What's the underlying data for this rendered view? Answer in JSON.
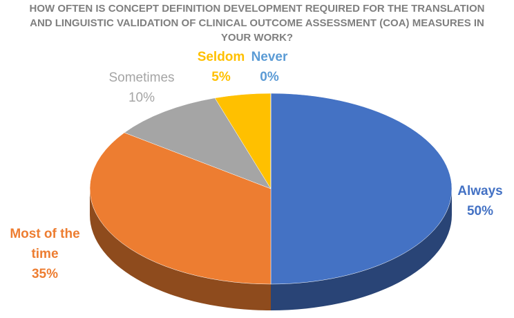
{
  "chart_data": {
    "type": "pie3d",
    "title": "HOW OFTEN IS CONCEPT DEFINITION DEVELOPMENT REQUIRED FOR THE TRANSLATION AND LINGUISTIC VALIDATION OF CLINICAL OUTCOME ASSESSMENT (COA) MEASURES IN YOUR WORK?",
    "categories": [
      "Always",
      "Most of the time",
      "Sometimes",
      "Seldom",
      "Never"
    ],
    "values": [
      50,
      35,
      10,
      5,
      0
    ],
    "value_labels": [
      "50%",
      "35%",
      "10%",
      "5%",
      "0%"
    ],
    "colors": [
      "#4472c4",
      "#ed7d31",
      "#a5a5a5",
      "#ffc000",
      "#5b9bd5"
    ]
  }
}
